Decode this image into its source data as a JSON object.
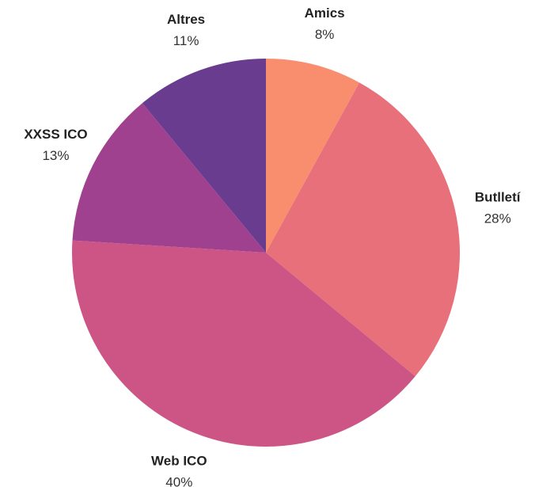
{
  "chart_data": {
    "type": "pie",
    "categories": [
      "Amics",
      "Butlletí",
      "Web ICO",
      "XXSS ICO",
      "Altres"
    ],
    "values": [
      8,
      28,
      40,
      13,
      11
    ],
    "value_labels": [
      "8%",
      "28%",
      "40%",
      "13%",
      "11%"
    ],
    "colors": [
      "#f98e6f",
      "#e8707a",
      "#cc5585",
      "#a0418f",
      "#6a3c8f"
    ]
  }
}
